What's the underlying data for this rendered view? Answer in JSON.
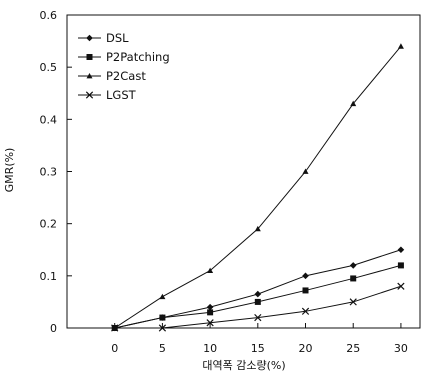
{
  "chart_data": {
    "type": "line",
    "title": "",
    "xlabel": "대역폭 감소량(%)",
    "ylabel": "GMR(%)",
    "x": [
      0,
      5,
      10,
      15,
      20,
      25,
      30
    ],
    "xlim": [
      -5,
      32
    ],
    "ylim": [
      0,
      0.6
    ],
    "x_ticks": [
      "0",
      "5",
      "10",
      "15",
      "20",
      "25",
      "30"
    ],
    "y_ticks": [
      "0",
      "0.1",
      "0.2",
      "0.3",
      "0.4",
      "0.5",
      "0.6"
    ],
    "grid": false,
    "legend_position": "top-left",
    "series": [
      {
        "name": "DSL",
        "marker": "diamond",
        "color": "#111111",
        "values": [
          0,
          0.02,
          0.04,
          0.065,
          0.1,
          0.12,
          0.15
        ]
      },
      {
        "name": "P2Patching",
        "marker": "square",
        "color": "#111111",
        "values": [
          0,
          0.02,
          0.03,
          0.05,
          0.072,
          0.095,
          0.12
        ]
      },
      {
        "name": "P2Cast",
        "marker": "triangle",
        "color": "#111111",
        "values": [
          0,
          0.06,
          0.11,
          0.19,
          0.3,
          0.43,
          0.54
        ]
      },
      {
        "name": "LGST",
        "marker": "cross",
        "color": "#111111",
        "values": [
          0,
          0,
          0.01,
          0.02,
          0.032,
          0.05,
          0.08
        ]
      }
    ]
  }
}
